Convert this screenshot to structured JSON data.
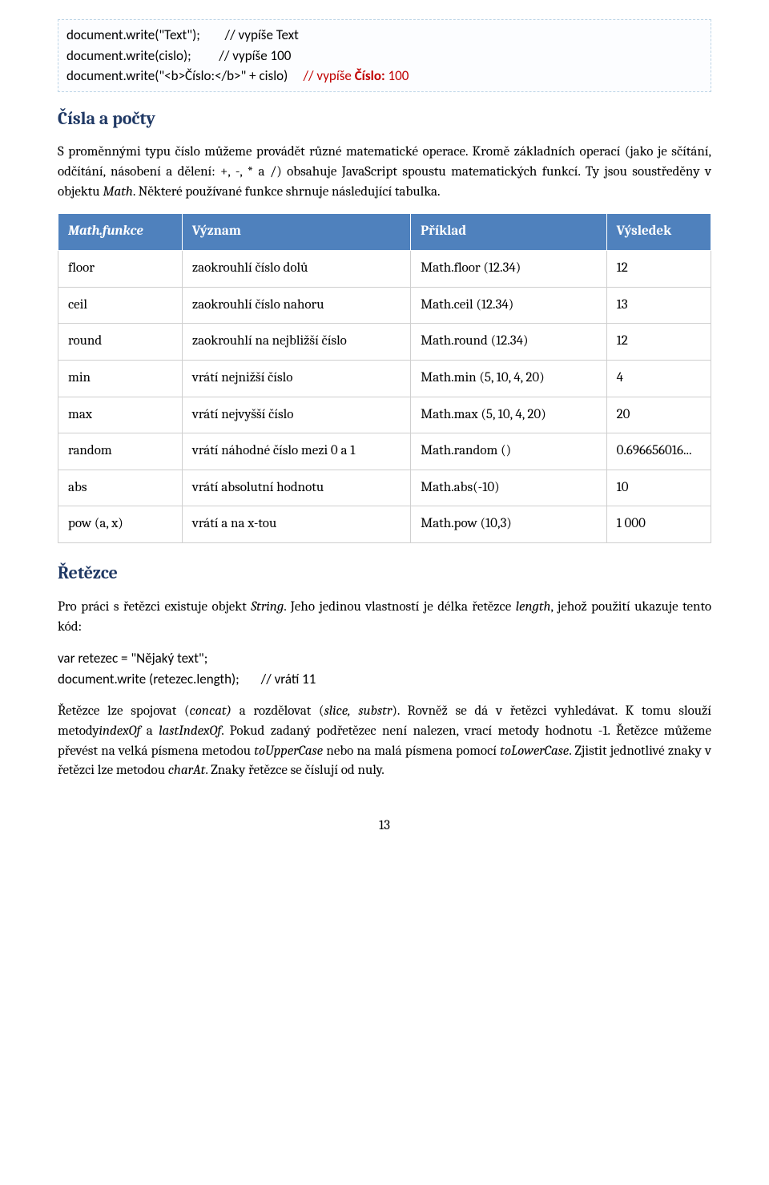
{
  "codebox1": {
    "line1_left": "document.write(\"Text\");",
    "line1_comment": "// vypíše Text",
    "line2_left": "document.write(cislo);",
    "line2_comment": "// vypíše 100",
    "line3_left": "document.write(\"<b>Číslo:</b>\" + cislo)",
    "line3_comment_prefix": "// vypíše ",
    "line3_comment_bold": "Číslo:",
    "line3_comment_suffix": " 100"
  },
  "heading1": "Čísla a počty",
  "para1_pre": "S proměnnými typu číslo můžeme provádět různé matematické operace. Kromě základních operací (jako je sčítání, odčítání, násobení a dělení: +, -, * a /) obsahuje JavaScript spoustu matematických funkcí. Ty jsou soustředěny v objektu ",
  "para1_em": "Math",
  "para1_post": ". Některé používané funkce shrnuje následující tabulka.",
  "table": {
    "headers": [
      "Math.funkce",
      "Význam",
      "Příklad",
      "Výsledek"
    ],
    "rows": [
      [
        "floor",
        "zaokrouhlí číslo dolů",
        "Math.floor (12.34)",
        "12"
      ],
      [
        "ceil",
        "zaokrouhlí číslo nahoru",
        "Math.ceil (12.34)",
        "13"
      ],
      [
        "round",
        "zaokrouhlí na nejbližší číslo",
        "Math.round (12.34)",
        "12"
      ],
      [
        "min",
        "vrátí nejnižší číslo",
        "Math.min (5, 10, 4, 20)",
        "4"
      ],
      [
        "max",
        "vrátí nejvyšší číslo",
        "Math.max (5, 10, 4, 20)",
        "20"
      ],
      [
        "random",
        "vrátí náhodné číslo mezi 0 a 1",
        "Math.random ()",
        "0.696656016..."
      ],
      [
        "abs",
        "vrátí absolutní hodnotu",
        "Math.abs(-10)",
        "10"
      ],
      [
        "pow (a, x)",
        "vrátí a na x-tou",
        "Math.pow (10,3)",
        "1 000"
      ]
    ]
  },
  "heading2": "Řetězce",
  "para2_pre": "Pro práci s řetězci existuje objekt ",
  "para2_em1": "String",
  "para2_mid": ". Jeho jedinou vlastností je délka řetězce ",
  "para2_em2": "length",
  "para2_post": ", jehož použití ukazuje tento kód:",
  "codebox2": {
    "line1": "var retezec = \"Nějaký text\";",
    "line2_left": "document.write (retezec.length);",
    "line2_comment": "// vrátí 11"
  },
  "para3_1": "Řetězce lze spojovat (",
  "para3_em_concat": "concat)",
  "para3_2": " a rozdělovat (",
  "para3_em_slice": "slice, substr",
  "para3_3": "). Rovněž se dá v řetězci vyhledávat. K tomu slouží metody",
  "para3_em_indexof": "indexOf",
  "para3_4": " a ",
  "para3_em_lastindexof": "lastIndexOf",
  "para3_5": ". Pokud zadaný podřetězec není nalezen, vrací metody hodnotu -1. Řetězce můžeme převést na velká písmena metodou ",
  "para3_em_upper": "toUpperCase",
  "para3_6": " nebo na malá písmena pomocí ",
  "para3_em_lower": "toLowerCase",
  "para3_7": ". Zjistit jednotlivé znaky v řetězci lze metodou ",
  "para3_em_charat": "charAt",
  "para3_8": ". Znaky řetězce se číslují od nuly.",
  "page_number": "13"
}
